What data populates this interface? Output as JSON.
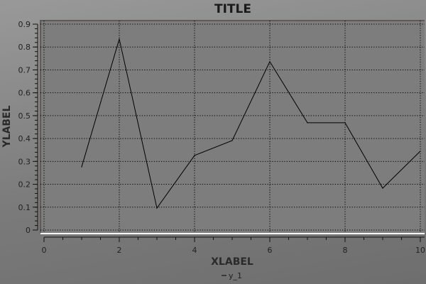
{
  "chart_data": {
    "type": "line",
    "title": "TITLE",
    "xlabel": "XLABEL",
    "ylabel": "YLABEL",
    "xlim": [
      0,
      10
    ],
    "ylim": [
      0,
      0.9
    ],
    "xticks": [
      "0",
      "2",
      "4",
      "6",
      "8",
      "10"
    ],
    "yticks": [
      "0",
      "0.1",
      "0.2",
      "0.3",
      "0.4",
      "0.5",
      "0.6",
      "0.7",
      "0.8",
      "0.9"
    ],
    "grid": true,
    "legend_position": "bottom",
    "series": [
      {
        "name": "y_1",
        "color": "#000000",
        "x": [
          1,
          2,
          3,
          4,
          5,
          6,
          7,
          8,
          9,
          10
        ],
        "y": [
          0.276,
          0.835,
          0.096,
          0.326,
          0.391,
          0.736,
          0.469,
          0.469,
          0.183,
          0.345
        ]
      }
    ]
  },
  "colors": {
    "plot_background": "#7d7d7d",
    "frame": "#5f5a58"
  }
}
